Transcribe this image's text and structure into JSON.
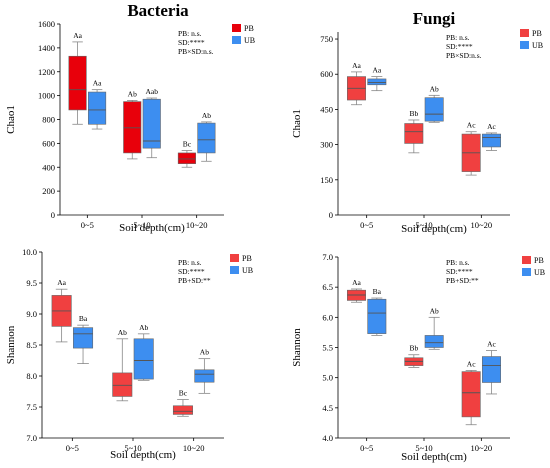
{
  "figure": {
    "legend": [
      {
        "label": "PB",
        "color": "#e8000b"
      },
      {
        "label": "UB",
        "color": "#3d8ef0"
      }
    ]
  },
  "chart_data": [
    {
      "type": "box",
      "title": "Bacteria",
      "xlabel": "Soil depth(cm)",
      "ylabel": "Chao1",
      "categories": [
        "0~5",
        "5~10",
        "10~20"
      ],
      "ylim": [
        0,
        1600
      ],
      "yticks": [
        0,
        200,
        400,
        600,
        800,
        1000,
        1200,
        1400,
        1600
      ],
      "stats": [
        "PB: n.s.",
        "SD:****",
        "PB×SD:n.s."
      ],
      "series": [
        {
          "name": "PB",
          "color": "#e8000b",
          "boxes": [
            {
              "min": 760,
              "q1": 880,
              "median": 1050,
              "q3": 1330,
              "max": 1450,
              "letter": "Aa"
            },
            {
              "min": 470,
              "q1": 520,
              "median": 730,
              "q3": 950,
              "max": 960,
              "letter": "Ab"
            },
            {
              "min": 400,
              "q1": 430,
              "median": 470,
              "q3": 520,
              "max": 540,
              "letter": "Bc"
            }
          ]
        },
        {
          "name": "UB",
          "color": "#3d8ef0",
          "boxes": [
            {
              "min": 720,
              "q1": 760,
              "median": 880,
              "q3": 1030,
              "max": 1050,
              "letter": "Aa"
            },
            {
              "min": 480,
              "q1": 560,
              "median": 620,
              "q3": 970,
              "max": 980,
              "letter": "Aab"
            },
            {
              "min": 450,
              "q1": 520,
              "median": 630,
              "q3": 770,
              "max": 780,
              "letter": "Ab"
            }
          ]
        }
      ]
    },
    {
      "type": "box",
      "title": "Fungi",
      "xlabel": "Soil depth(cm)",
      "ylabel": "Chao1",
      "categories": [
        "0~5",
        "5~10",
        "10~20"
      ],
      "ylim": [
        0,
        780
      ],
      "yticks": [
        0,
        150,
        300,
        450,
        600,
        750
      ],
      "stats": [
        "PB: n.s.",
        "SD:****",
        "PB×SD:n.s."
      ],
      "series": [
        {
          "name": "PB",
          "color": "#f04040",
          "boxes": [
            {
              "min": 470,
              "q1": 490,
              "median": 540,
              "q3": 590,
              "max": 610,
              "letter": "Aa"
            },
            {
              "min": 265,
              "q1": 305,
              "median": 355,
              "q3": 390,
              "max": 405,
              "letter": "Bb"
            },
            {
              "min": 170,
              "q1": 185,
              "median": 265,
              "q3": 345,
              "max": 355,
              "letter": "Ac"
            }
          ]
        },
        {
          "name": "UB",
          "color": "#3d8ef0",
          "boxes": [
            {
              "min": 530,
              "q1": 555,
              "median": 565,
              "q3": 580,
              "max": 590,
              "letter": "Aa"
            },
            {
              "min": 395,
              "q1": 400,
              "median": 430,
              "q3": 500,
              "max": 510,
              "letter": "Ab"
            },
            {
              "min": 275,
              "q1": 290,
              "median": 330,
              "q3": 345,
              "max": 350,
              "letter": "Ac"
            }
          ]
        }
      ]
    },
    {
      "type": "box",
      "title": "",
      "xlabel": "Soil depth(cm)",
      "ylabel": "Shannon",
      "categories": [
        "0~5",
        "5~10",
        "10~20"
      ],
      "ylim": [
        7.0,
        10.0
      ],
      "yticks": [
        7.0,
        7.5,
        8.0,
        8.5,
        9.0,
        9.5,
        10.0
      ],
      "stats": [
        "PB: n.s.",
        "SD:****",
        "PB+SD:**"
      ],
      "series": [
        {
          "name": "PB",
          "color": "#f04040",
          "boxes": [
            {
              "min": 8.55,
              "q1": 8.8,
              "median": 9.05,
              "q3": 9.3,
              "max": 9.4,
              "letter": "Aa"
            },
            {
              "min": 7.6,
              "q1": 7.67,
              "median": 7.85,
              "q3": 8.05,
              "max": 8.6,
              "letter": "Ab"
            },
            {
              "min": 7.35,
              "q1": 7.38,
              "median": 7.43,
              "q3": 7.52,
              "max": 7.62,
              "letter": "Bc"
            }
          ]
        },
        {
          "name": "UB",
          "color": "#3d8ef0",
          "boxes": [
            {
              "min": 8.2,
              "q1": 8.45,
              "median": 8.68,
              "q3": 8.78,
              "max": 8.82,
              "letter": "Ba"
            },
            {
              "min": 7.93,
              "q1": 7.95,
              "median": 8.25,
              "q3": 8.6,
              "max": 8.68,
              "letter": "Ab"
            },
            {
              "min": 7.72,
              "q1": 7.9,
              "median": 8.03,
              "q3": 8.1,
              "max": 8.28,
              "letter": "Ab"
            }
          ]
        }
      ]
    },
    {
      "type": "box",
      "title": "",
      "xlabel": "Soil depth(cm)",
      "ylabel": "Shannon",
      "categories": [
        "0~5",
        "5~10",
        "10~20"
      ],
      "ylim": [
        4.0,
        7.0
      ],
      "yticks": [
        4.0,
        4.5,
        5.0,
        5.5,
        6.0,
        6.5,
        7.0
      ],
      "stats": [
        "PB: n.s.",
        "SD:****",
        "PB+SD:**"
      ],
      "series": [
        {
          "name": "PB",
          "color": "#f04040",
          "boxes": [
            {
              "min": 6.25,
              "q1": 6.28,
              "median": 6.37,
              "q3": 6.45,
              "max": 6.47,
              "letter": "Aa"
            },
            {
              "min": 5.17,
              "q1": 5.2,
              "median": 5.27,
              "q3": 5.33,
              "max": 5.38,
              "letter": "Bb"
            },
            {
              "min": 4.22,
              "q1": 4.35,
              "median": 4.75,
              "q3": 5.1,
              "max": 5.12,
              "letter": "Ac"
            }
          ]
        },
        {
          "name": "UB",
          "color": "#3d8ef0",
          "boxes": [
            {
              "min": 5.7,
              "q1": 5.73,
              "median": 6.07,
              "q3": 6.3,
              "max": 6.32,
              "letter": "Ba"
            },
            {
              "min": 5.47,
              "q1": 5.5,
              "median": 5.58,
              "q3": 5.7,
              "max": 6.0,
              "letter": "Ab"
            },
            {
              "min": 4.73,
              "q1": 4.92,
              "median": 5.2,
              "q3": 5.35,
              "max": 5.45,
              "letter": "Ac"
            }
          ]
        }
      ]
    }
  ]
}
